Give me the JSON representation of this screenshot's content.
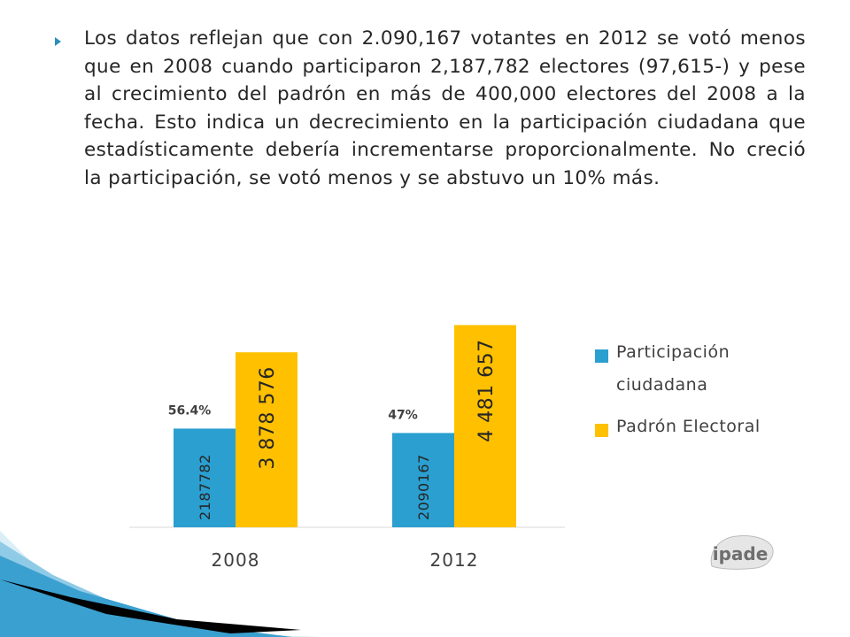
{
  "slide": {
    "paragraph": "Los datos reflejan que con 2.090,167 votantes en 2012 se votó menos que en 2008 cuando participaron 2,187,782 electores (97,615-) y pese al crecimiento del padrón en más de 400,000 electores del 2008 a la fecha. Esto indica un decrecimiento en la participación ciudadana que estadísticamente debería incrementarse proporcionalmente. No creció  la participación, se votó menos y se abstuvo un 10% más."
  },
  "logo": {
    "text": "ipade"
  },
  "chart_data": {
    "type": "bar",
    "title": "",
    "xlabel": "",
    "ylabel": "",
    "categories": [
      "2008",
      "2012"
    ],
    "ylim": [
      0,
      5000000
    ],
    "legend_position": "right",
    "grid": false,
    "series": [
      {
        "name": "Participación ciudadana",
        "color": "#2a9fd0",
        "values": [
          2187782,
          2090167
        ],
        "labels": [
          "2187782",
          "2090167"
        ]
      },
      {
        "name": "Padrón Electoral",
        "color": "#ffc000",
        "values": [
          3878576,
          4481657
        ],
        "labels": [
          "3 878 576",
          "4 481 657"
        ]
      }
    ],
    "annotations": [
      "56.4%",
      "47%"
    ]
  }
}
